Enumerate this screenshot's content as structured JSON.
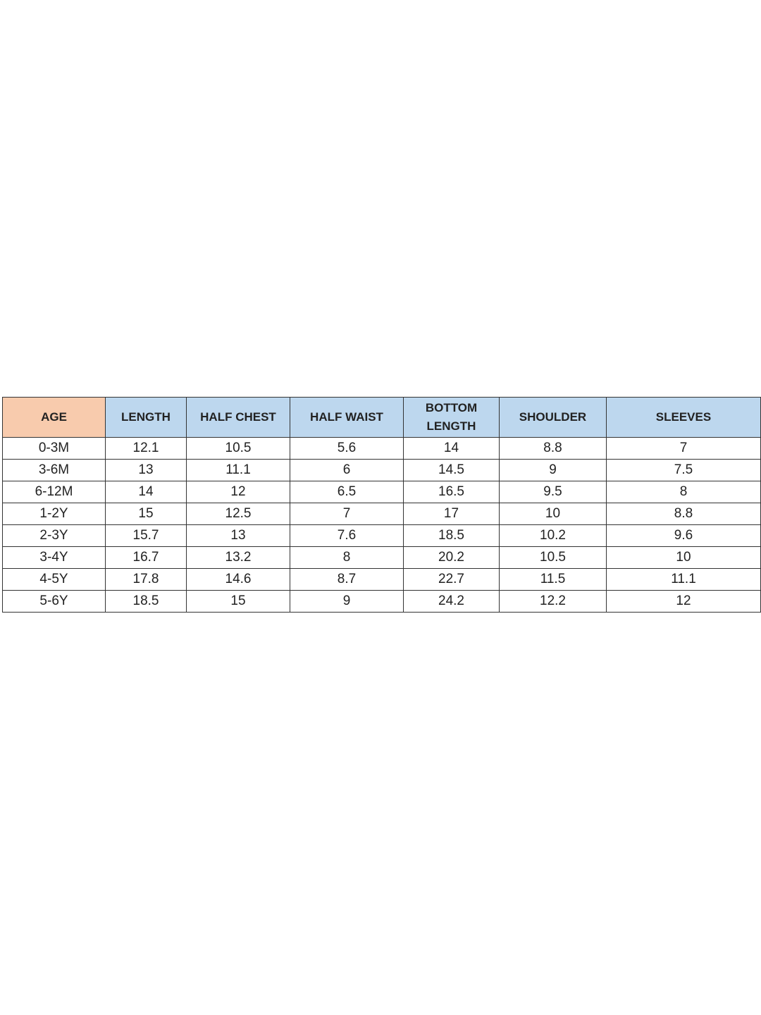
{
  "colors": {
    "age_header": "#f8cbad",
    "measure_header": "#bdd7ee"
  },
  "table": {
    "headers": [
      "AGE",
      "LENGTH",
      "HALF CHEST",
      "HALF WAIST",
      "BOTTOM LENGTH",
      "SHOULDER",
      "SLEEVES"
    ],
    "rows": [
      [
        "0-3M",
        "12.1",
        "10.5",
        "5.6",
        "14",
        "8.8",
        "7"
      ],
      [
        "3-6M",
        "13",
        "11.1",
        "6",
        "14.5",
        "9",
        "7.5"
      ],
      [
        "6-12M",
        "14",
        "12",
        "6.5",
        "16.5",
        "9.5",
        "8"
      ],
      [
        "1-2Y",
        "15",
        "12.5",
        "7",
        "17",
        "10",
        "8.8"
      ],
      [
        "2-3Y",
        "15.7",
        "13",
        "7.6",
        "18.5",
        "10.2",
        "9.6"
      ],
      [
        "3-4Y",
        "16.7",
        "13.2",
        "8",
        "20.2",
        "10.5",
        "10"
      ],
      [
        "4-5Y",
        "17.8",
        "14.6",
        "8.7",
        "22.7",
        "11.5",
        "11.1"
      ],
      [
        "5-6Y",
        "18.5",
        "15",
        "9",
        "24.2",
        "12.2",
        "12"
      ]
    ]
  }
}
